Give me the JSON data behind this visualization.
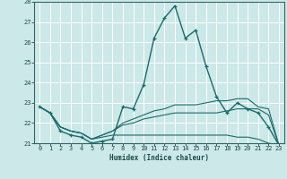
{
  "xlabel": "Humidex (Indice chaleur)",
  "bg_color": "#cce8e8",
  "grid_color": "#ffffff",
  "line_color": "#1a6b6b",
  "xlim": [
    -0.5,
    23.5
  ],
  "ylim": [
    21,
    28
  ],
  "yticks": [
    21,
    22,
    23,
    24,
    25,
    26,
    27,
    28
  ],
  "xticks": [
    0,
    1,
    2,
    3,
    4,
    5,
    6,
    7,
    8,
    9,
    10,
    11,
    12,
    13,
    14,
    15,
    16,
    17,
    18,
    19,
    20,
    21,
    22,
    23
  ],
  "main_x": [
    0,
    1,
    2,
    3,
    4,
    5,
    6,
    7,
    8,
    9,
    10,
    11,
    12,
    13,
    14,
    15,
    16,
    17,
    18,
    19,
    20,
    21,
    22,
    23
  ],
  "main_y": [
    22.8,
    22.5,
    21.6,
    21.4,
    21.3,
    21.0,
    21.1,
    21.2,
    22.8,
    22.7,
    23.9,
    26.2,
    27.2,
    27.8,
    26.2,
    26.6,
    24.8,
    23.3,
    22.5,
    23.0,
    22.7,
    22.5,
    21.8,
    20.9
  ],
  "line2_x": [
    0,
    1,
    2,
    3,
    4,
    5,
    6,
    7,
    8,
    9,
    10,
    11,
    12,
    13,
    14,
    15,
    16,
    17,
    18,
    19,
    20,
    21,
    22,
    23
  ],
  "line2_y": [
    22.8,
    22.5,
    21.8,
    21.6,
    21.5,
    21.2,
    21.4,
    21.6,
    22.0,
    22.2,
    22.4,
    22.6,
    22.7,
    22.9,
    22.9,
    22.9,
    23.0,
    23.1,
    23.1,
    23.2,
    23.2,
    22.8,
    22.7,
    20.9
  ],
  "line3_x": [
    0,
    1,
    2,
    3,
    4,
    5,
    6,
    7,
    8,
    9,
    10,
    11,
    12,
    13,
    14,
    15,
    16,
    17,
    18,
    19,
    20,
    21,
    22,
    23
  ],
  "line3_y": [
    22.8,
    22.5,
    21.8,
    21.6,
    21.5,
    21.2,
    21.4,
    21.6,
    21.9,
    22.0,
    22.2,
    22.3,
    22.4,
    22.5,
    22.5,
    22.5,
    22.5,
    22.5,
    22.6,
    22.7,
    22.7,
    22.7,
    22.4,
    20.9
  ],
  "line4_x": [
    0,
    1,
    2,
    3,
    4,
    5,
    6,
    7,
    8,
    9,
    10,
    11,
    12,
    13,
    14,
    15,
    16,
    17,
    18,
    19,
    20,
    21,
    22,
    23
  ],
  "line4_y": [
    22.8,
    22.5,
    21.8,
    21.6,
    21.5,
    21.2,
    21.3,
    21.4,
    21.4,
    21.4,
    21.4,
    21.4,
    21.4,
    21.4,
    21.4,
    21.4,
    21.4,
    21.4,
    21.4,
    21.3,
    21.3,
    21.2,
    21.0,
    20.9
  ]
}
